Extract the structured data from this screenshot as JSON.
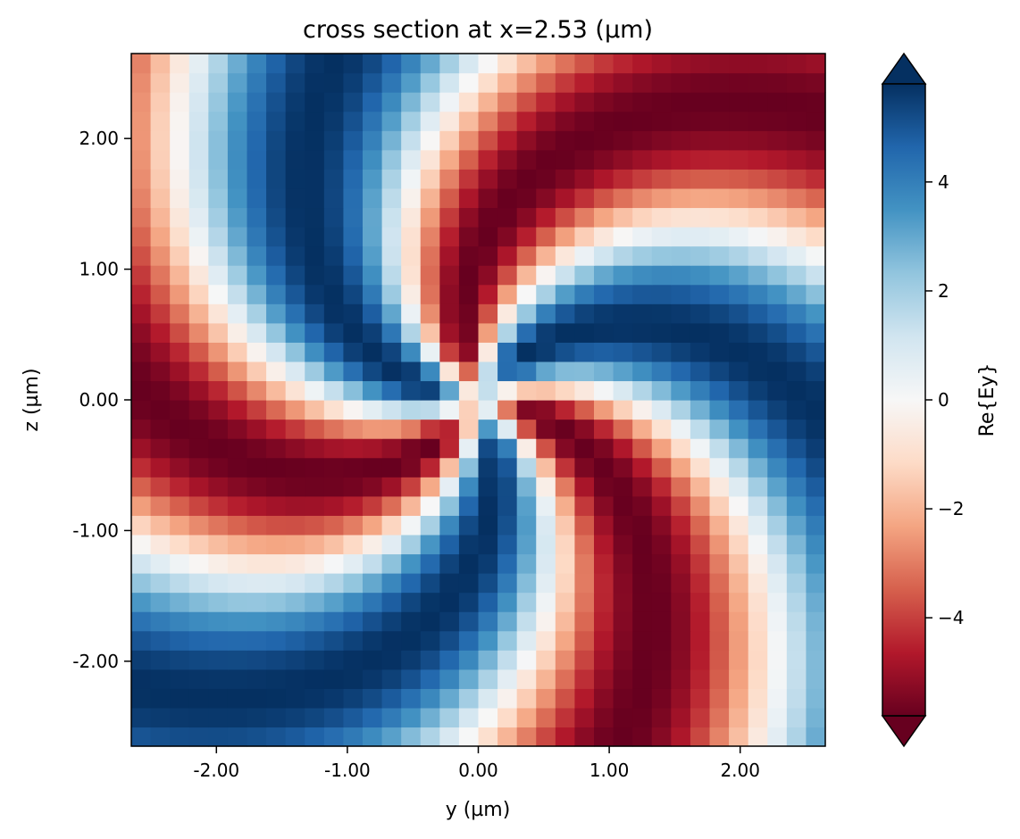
{
  "chart_data": {
    "type": "heatmap",
    "title": "cross section at x=2.53 (µm)",
    "xlabel": "y (µm)",
    "ylabel": "z (µm)",
    "xlim": [
      -2.65,
      2.65
    ],
    "ylim": [
      -2.65,
      2.65
    ],
    "x_ticks": [
      -2,
      -1,
      0,
      1,
      2
    ],
    "x_tick_labels": [
      "-2.00",
      "-1.00",
      "0.00",
      "1.00",
      "2.00"
    ],
    "y_ticks": [
      -2,
      -1,
      0,
      1,
      2
    ],
    "y_tick_labels": [
      "-2.00",
      "-1.00",
      "0.00",
      "1.00",
      "2.00"
    ],
    "grid_points": 36,
    "field": {
      "quantity": "Re{Ey}",
      "pattern": "three-arm spiral (azimuthal order 3) rotating about the origin",
      "amplitude": 5.8,
      "azimuthal_order": 3,
      "radial_twist_rad_per_um": 1.15,
      "phase_offset_rad": 3.4,
      "center_core_radius_um": 0.4
    },
    "colorbar": {
      "label": "Re{Ey}",
      "colormap": "RdBu",
      "vmin": -5.8,
      "vmax": 5.8,
      "extend": "both",
      "ticks": [
        4,
        2,
        0,
        -2,
        -4
      ],
      "tick_labels": [
        "4",
        "2",
        "0",
        "−2",
        "−4"
      ]
    },
    "colors": {
      "negative_extreme": "#67001f",
      "positive_extreme": "#053061",
      "neutral": "#f7f7f7"
    }
  }
}
